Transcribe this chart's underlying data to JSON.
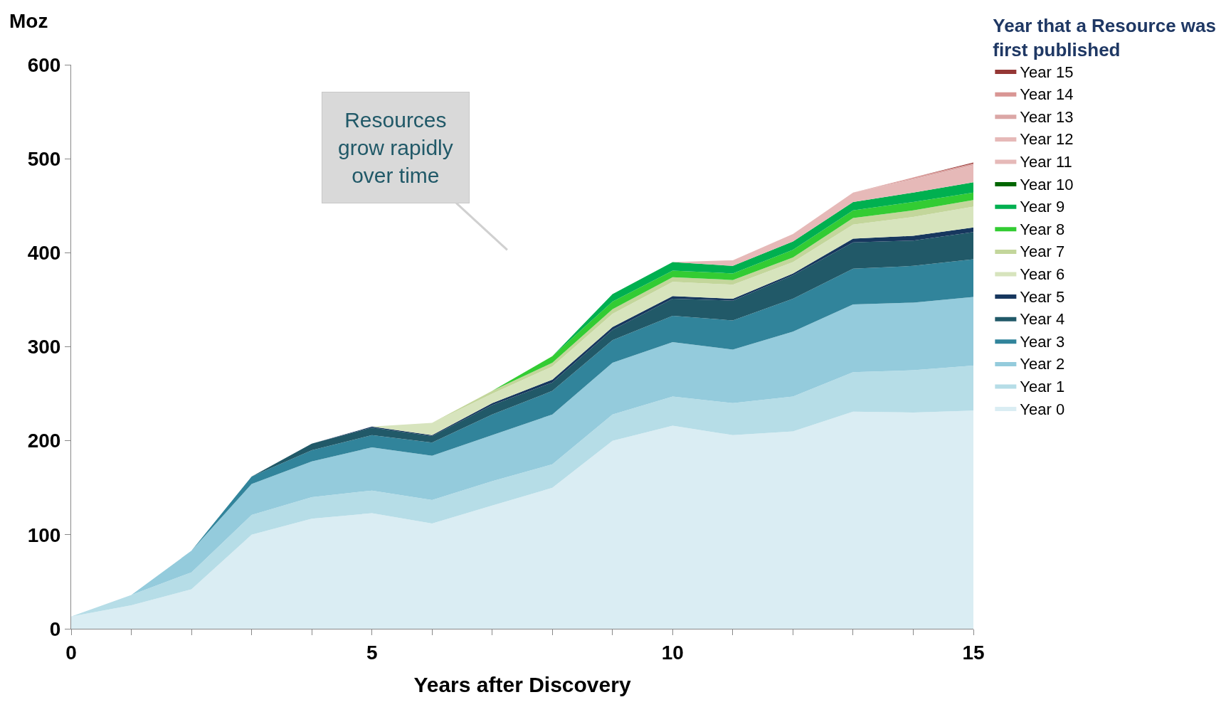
{
  "chart_data": {
    "type": "area",
    "stacked": true,
    "xlabel": "Years after Discovery",
    "ylabel": "Moz",
    "legend_title": "Year that a Resource was first published",
    "legend": "right",
    "xlim": [
      0,
      15
    ],
    "xticks": [
      0,
      {
        "value": 1,
        "label": null
      },
      {
        "value": 2,
        "label": null
      },
      {
        "value": 3,
        "label": null
      },
      {
        "value": 4,
        "label": null
      },
      5,
      {
        "value": 6,
        "label": null
      },
      {
        "value": 7,
        "label": null
      },
      {
        "value": 8,
        "label": null
      },
      {
        "value": 9,
        "label": null
      },
      10,
      {
        "value": 11,
        "label": null
      },
      {
        "value": 12,
        "label": null
      },
      {
        "value": 13,
        "label": null
      },
      {
        "value": 14,
        "label": null
      },
      15
    ],
    "ylim": [
      0,
      600
    ],
    "yticks": [
      0,
      100,
      200,
      300,
      400,
      500,
      600
    ],
    "annotations": [
      "Resources grow rapidly over time"
    ],
    "x": [
      0,
      1,
      2,
      3,
      4,
      5,
      6,
      7,
      8,
      9,
      10,
      11,
      12,
      13,
      14,
      15
    ],
    "series": [
      {
        "name": "Year 0",
        "color": "#daedf3",
        "values": [
          13,
          25,
          42,
          100,
          117,
          123,
          112,
          131,
          150,
          200,
          216,
          206,
          210,
          231,
          230,
          232
        ]
      },
      {
        "name": "Year 1",
        "color": "#b6dde7",
        "values": [
          0,
          11,
          18,
          21,
          23,
          24,
          25,
          26,
          25,
          28,
          31,
          34,
          37,
          42,
          45,
          48
        ]
      },
      {
        "name": "Year 2",
        "color": "#94cbdc",
        "values": [
          0,
          0,
          23,
          33,
          38,
          46,
          47,
          49,
          53,
          55,
          58,
          57,
          69,
          72,
          72,
          73
        ]
      },
      {
        "name": "Year 3",
        "color": "#31849b",
        "values": [
          0,
          0,
          0,
          8,
          12,
          13,
          14,
          22,
          25,
          24,
          28,
          31,
          35,
          38,
          39,
          40
        ]
      },
      {
        "name": "Year 4",
        "color": "#215968",
        "values": [
          0,
          0,
          0,
          0,
          7,
          8,
          7,
          10,
          9,
          11,
          18,
          21,
          25,
          28,
          27,
          29
        ]
      },
      {
        "name": "Year 5",
        "color": "#17375e",
        "values": [
          0,
          0,
          0,
          0,
          0,
          1,
          1,
          2,
          3,
          3,
          3,
          2,
          2,
          4,
          5,
          5
        ]
      },
      {
        "name": "Year 6",
        "color": "#d7e4bd",
        "values": [
          0,
          0,
          0,
          0,
          0,
          0,
          13,
          10,
          14,
          14,
          15,
          15,
          12,
          15,
          20,
          22
        ]
      },
      {
        "name": "Year 7",
        "color": "#c3d69b",
        "values": [
          0,
          0,
          0,
          0,
          0,
          0,
          0,
          3,
          4,
          5,
          5,
          5,
          5,
          7,
          7,
          7
        ]
      },
      {
        "name": "Year 8",
        "color": "#33cc33",
        "values": [
          0,
          0,
          0,
          0,
          0,
          0,
          0,
          0,
          7,
          8,
          7,
          7,
          8,
          8,
          9,
          8
        ]
      },
      {
        "name": "Year 9",
        "color": "#00b050",
        "values": [
          0,
          0,
          0,
          0,
          0,
          0,
          0,
          0,
          0,
          8,
          9,
          8,
          9,
          9,
          10,
          11
        ]
      },
      {
        "name": "Year 10",
        "color": "#006600",
        "values": [
          null,
          null,
          null,
          null,
          null,
          null,
          null,
          null,
          null,
          null,
          null,
          null,
          null,
          null,
          null,
          null
        ]
      },
      {
        "name": "Year 11",
        "color": "#e6b9b8",
        "values": [
          0,
          0,
          0,
          0,
          0,
          0,
          0,
          0,
          0,
          0,
          0,
          6,
          8,
          10,
          14,
          18
        ]
      },
      {
        "name": "Year 12",
        "color": "#e6b9b8",
        "values": [
          null,
          null,
          null,
          null,
          null,
          null,
          null,
          null,
          null,
          null,
          null,
          null,
          null,
          null,
          null,
          null
        ]
      },
      {
        "name": "Year 13",
        "color": "#dba7a6",
        "values": [
          0,
          0,
          0,
          0,
          0,
          0,
          0,
          0,
          0,
          0,
          0,
          0,
          0,
          0,
          1,
          1
        ]
      },
      {
        "name": "Year 14",
        "color": "#d99694",
        "values": [
          0,
          0,
          0,
          0,
          0,
          0,
          0,
          0,
          0,
          0,
          0,
          0,
          0,
          0,
          1,
          1
        ]
      },
      {
        "name": "Year 15",
        "color": "#953735",
        "values": [
          0,
          0,
          0,
          0,
          0,
          0,
          0,
          0,
          0,
          0,
          0,
          0,
          0,
          0,
          0,
          1
        ]
      }
    ]
  }
}
